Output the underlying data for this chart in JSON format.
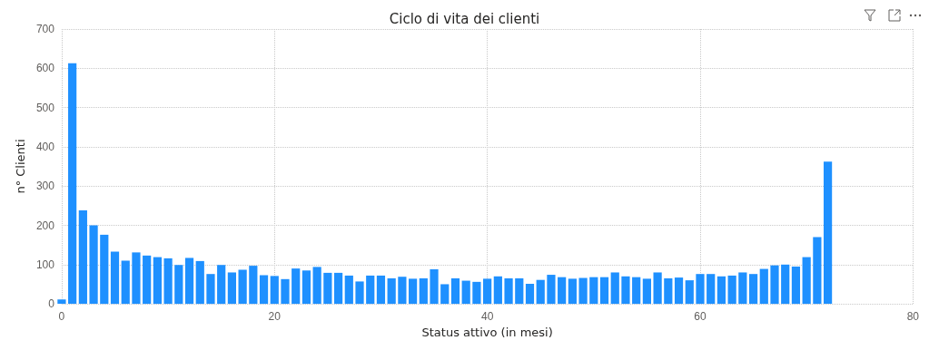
{
  "chart_data": {
    "type": "bar",
    "title": "Ciclo di vita dei clienti",
    "xlabel": "Status attivo (in mesi)",
    "ylabel": "n° Clienti",
    "color": "#1e90ff",
    "x": [
      0,
      1,
      2,
      3,
      4,
      5,
      6,
      7,
      8,
      9,
      10,
      11,
      12,
      13,
      14,
      15,
      16,
      17,
      18,
      19,
      20,
      21,
      22,
      23,
      24,
      25,
      26,
      27,
      28,
      29,
      30,
      31,
      32,
      33,
      34,
      35,
      36,
      37,
      38,
      39,
      40,
      41,
      42,
      43,
      44,
      45,
      46,
      47,
      48,
      49,
      50,
      51,
      52,
      53,
      54,
      55,
      56,
      57,
      58,
      59,
      60,
      61,
      62,
      63,
      64,
      65,
      66,
      67,
      68,
      69,
      70,
      71,
      72
    ],
    "values": [
      11,
      613,
      238,
      200,
      176,
      133,
      110,
      131,
      123,
      119,
      116,
      99,
      117,
      109,
      76,
      99,
      80,
      87,
      97,
      73,
      71,
      63,
      90,
      85,
      94,
      79,
      79,
      72,
      57,
      72,
      72,
      65,
      69,
      64,
      65,
      88,
      50,
      65,
      59,
      56,
      64,
      70,
      65,
      65,
      51,
      61,
      74,
      68,
      64,
      66,
      68,
      68,
      80,
      70,
      68,
      64,
      80,
      65,
      67,
      60,
      76,
      76,
      70,
      72,
      80,
      76,
      89,
      98,
      100,
      95,
      119,
      170,
      362
    ],
    "xlim": [
      0,
      80
    ],
    "xticks": [
      0,
      20,
      40,
      60,
      80
    ],
    "ylim": [
      0,
      700
    ],
    "yticks": [
      0,
      100,
      200,
      300,
      400,
      500,
      600,
      700
    ],
    "grid": true
  }
}
